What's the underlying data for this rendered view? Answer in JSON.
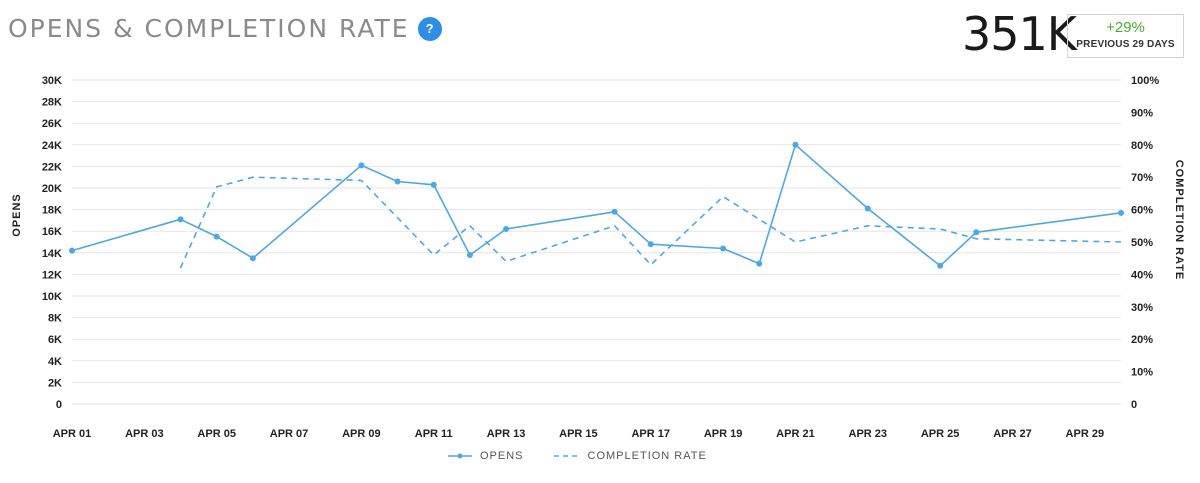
{
  "header": {
    "title": "OPENS & COMPLETION RATE",
    "help_icon": "?"
  },
  "summary": {
    "value": "351K",
    "change": "+29%",
    "period": "PREVIOUS 29 DAYS",
    "change_color": "#43b02a"
  },
  "colors": {
    "series": "#4aa8e8",
    "grid": "#e6e6e6"
  },
  "chart_data": {
    "type": "line",
    "ylabel": "OPENS",
    "y2label": "COMPLETION RATE",
    "ylim": [
      0,
      30000
    ],
    "y2lim": [
      0,
      100
    ],
    "yticks": [
      "0",
      "2K",
      "4K",
      "6K",
      "8K",
      "10K",
      "12K",
      "14K",
      "16K",
      "18K",
      "20K",
      "22K",
      "24K",
      "26K",
      "28K",
      "30K"
    ],
    "y2ticks": [
      "0",
      "10%",
      "20%",
      "30%",
      "40%",
      "50%",
      "60%",
      "70%",
      "80%",
      "90%",
      "100%"
    ],
    "xlim": [
      1,
      30
    ],
    "xticks": [
      {
        "day": 1,
        "label": "APR 01"
      },
      {
        "day": 3,
        "label": "APR 03"
      },
      {
        "day": 5,
        "label": "APR 05"
      },
      {
        "day": 7,
        "label": "APR 07"
      },
      {
        "day": 9,
        "label": "APR 09"
      },
      {
        "day": 11,
        "label": "APR 11"
      },
      {
        "day": 13,
        "label": "APR 13"
      },
      {
        "day": 15,
        "label": "APR 15"
      },
      {
        "day": 17,
        "label": "APR 17"
      },
      {
        "day": 19,
        "label": "APR 19"
      },
      {
        "day": 21,
        "label": "APR 21"
      },
      {
        "day": 23,
        "label": "APR 23"
      },
      {
        "day": 25,
        "label": "APR 25"
      },
      {
        "day": 27,
        "label": "APR 27"
      },
      {
        "day": 29,
        "label": "APR 29"
      }
    ],
    "grid": true,
    "legend_position": "bottom-center",
    "series": [
      {
        "name": "OPENS",
        "axis": "left",
        "style": "solid",
        "markers": true,
        "x": [
          1,
          4,
          5,
          6,
          9,
          10,
          11,
          12,
          13,
          16,
          17,
          19,
          20,
          21,
          23,
          25,
          26,
          30
        ],
        "y": [
          14200,
          17100,
          15500,
          13500,
          22100,
          20600,
          20300,
          13800,
          16200,
          17800,
          14800,
          14400,
          13000,
          24000,
          18100,
          12800,
          15900,
          17700
        ]
      },
      {
        "name": "COMPLETION RATE",
        "axis": "right",
        "style": "dashed",
        "markers": false,
        "x": [
          4,
          5,
          6,
          9,
          11,
          12,
          13,
          16,
          17,
          19,
          21,
          23,
          25,
          26,
          30
        ],
        "y": [
          42,
          67,
          70,
          69,
          46,
          55,
          44,
          55,
          43,
          64,
          50,
          55,
          54,
          51,
          50
        ]
      }
    ]
  }
}
